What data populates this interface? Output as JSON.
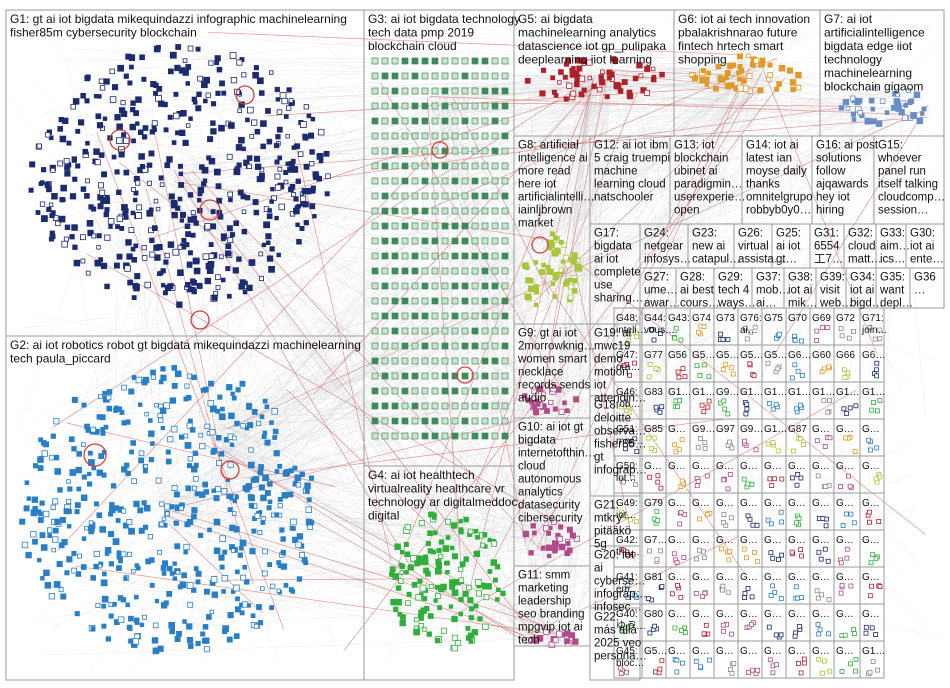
{
  "colors": {
    "background": "#ffffff",
    "border": "#9a9a9a",
    "edge": "#bdbdbd",
    "edge_highlight": "#d04040",
    "g1": "#1c2a6e",
    "g2": "#2a7fc4",
    "g3": "#3f8a5a",
    "g4": "#2fae3a",
    "g5": "#b0202a",
    "g6": "#e09a2a",
    "g7": "#6a8cc7",
    "g8": "#a8c63a",
    "g9": "#b04a8a",
    "misc": "#8a8a8a"
  },
  "groups": [
    {
      "id": "g1",
      "lines": [
        "G1: gt ai iot bigdata mikequindazzi infographic machinelearning",
        "fisher85m cybersecurity blockchain"
      ]
    },
    {
      "id": "g2",
      "lines": [
        "G2: ai iot robotics robot gt bigdata mikequindazzi machinelearning",
        "tech paula_piccard"
      ]
    },
    {
      "id": "g3",
      "lines": [
        "G3: ai iot bigdata technology",
        "tech data pmp 2019",
        "blockchain cloud"
      ]
    },
    {
      "id": "g4",
      "lines": [
        "G4: ai iot healthtech",
        "virtualreality healthcare vr",
        "technology ar digitalmeddoc",
        "digital"
      ]
    },
    {
      "id": "g5",
      "lines": [
        "G5: ai bigdata",
        "machinelearning analytics",
        "datascience iot gp_pulipaka",
        "deeplearning iiot learning"
      ]
    },
    {
      "id": "g6",
      "lines": [
        "G6: iot ai tech innovation",
        "pbalakrishnarao future",
        "fintech hrtech smart",
        "shopping"
      ]
    },
    {
      "id": "g7",
      "lines": [
        "G7: ai iot",
        "artificialintelligence",
        "bigdata edge iiot",
        "technology",
        "machinelearning",
        "blockchain gigaom"
      ]
    },
    {
      "id": "g8",
      "lines": [
        "G8: artificial",
        "intelligence ai",
        "more read",
        "here iot",
        "artificialintelli…",
        "iainljbrown",
        "market"
      ]
    },
    {
      "id": "g12",
      "lines": [
        "G12: ai iot ibm",
        "5 craig truempi",
        "machine",
        "learning cloud",
        "natschooler"
      ]
    },
    {
      "id": "g13",
      "lines": [
        "G13: iot",
        "blockchain",
        "ubinet ai",
        "paradigmin…",
        "userexperie…",
        "open"
      ]
    },
    {
      "id": "g14",
      "lines": [
        "G14: iot ai",
        "latest ian",
        "moyse daily",
        "thanks",
        "omnitelgrupo",
        "robbyb0y0…"
      ]
    },
    {
      "id": "g16",
      "lines": [
        "G16: ai post",
        "solutions",
        "follow",
        "ajqawards",
        "hey iot",
        "hiring"
      ]
    },
    {
      "id": "g15",
      "lines": [
        "G15:",
        "whoever",
        "panel run",
        "itself talking",
        "cloudcomp…",
        "session…"
      ]
    },
    {
      "id": "g17",
      "lines": [
        "G17:",
        "bigdata",
        "ai iot",
        "complete",
        "use",
        "sharing…"
      ]
    },
    {
      "id": "g24",
      "lines": [
        "G24:",
        "netgear",
        "infosys…"
      ]
    },
    {
      "id": "g23",
      "lines": [
        "G23:",
        "new ai",
        "catapul…"
      ]
    },
    {
      "id": "g26",
      "lines": [
        "G26:",
        "virtual",
        "assista…"
      ]
    },
    {
      "id": "g25",
      "lines": [
        "G25:",
        "ai iot",
        "gt…"
      ]
    },
    {
      "id": "g31",
      "lines": [
        "G31:",
        "6554",
        "工7…"
      ]
    },
    {
      "id": "g32",
      "lines": [
        "G32:",
        "cloud",
        "matt…"
      ]
    },
    {
      "id": "g33",
      "lines": [
        "G33:",
        "aim…",
        "ics…"
      ]
    },
    {
      "id": "g30",
      "lines": [
        "G30:",
        "iot ai",
        "ente…"
      ]
    },
    {
      "id": "g27",
      "lines": [
        "G27:",
        "ume…",
        "awar…"
      ]
    },
    {
      "id": "g28",
      "lines": [
        "G28:",
        "ai best",
        "cours…"
      ]
    },
    {
      "id": "g29",
      "lines": [
        "G29:",
        "tech 4",
        "ways…"
      ]
    },
    {
      "id": "g37",
      "lines": [
        "G37:",
        "mob…",
        "ai…"
      ]
    },
    {
      "id": "g38",
      "lines": [
        "G38:",
        "iot ai",
        "mik…"
      ]
    },
    {
      "id": "g39",
      "lines": [
        "G39:",
        "visit",
        "web…"
      ]
    },
    {
      "id": "g34",
      "lines": [
        "G34:",
        "iot ai",
        "bigd…"
      ]
    },
    {
      "id": "g35",
      "lines": [
        "G35:",
        "want",
        "depl…"
      ]
    },
    {
      "id": "g36",
      "lines": [
        "G36",
        "…"
      ]
    },
    {
      "id": "g9",
      "lines": [
        "G9: gt ai iot",
        "2morrowknig…",
        "women smart",
        "necklace",
        "records sends",
        "audio"
      ]
    },
    {
      "id": "g19",
      "lines": [
        "G19: ai",
        "mwc19",
        "demo",
        "motion",
        "iot",
        "attendin…"
      ]
    },
    {
      "id": "g18",
      "lines": [
        "G18:",
        "deloitte",
        "observa…",
        "fisher85…",
        "gt",
        "infograp…"
      ]
    },
    {
      "id": "g10",
      "lines": [
        "G10: ai iot gt",
        "bigdata",
        "internetofthin…",
        "cloud",
        "autonomous",
        "analytics",
        "datasecurity",
        "cibersecurity"
      ]
    },
    {
      "id": "g21",
      "lines": [
        "G21:",
        "mtkry",
        "pitääkö",
        "5g"
      ]
    },
    {
      "id": "g20",
      "lines": [
        "G20: iot",
        "ai",
        "cyberse…",
        "infograp…",
        "infosec…"
      ]
    },
    {
      "id": "g11",
      "lines": [
        "G11: smm",
        "marketing",
        "leadership",
        "seo branding",
        "mpgvip iot ai",
        "tech"
      ]
    },
    {
      "id": "g22",
      "lines": [
        "G22:",
        "más allá",
        "2025 veo",
        "persona…"
      ]
    }
  ],
  "small_groups": [
    "G48: inteli…",
    "G44: vous…",
    "G43: …",
    "G74",
    "G73",
    "G76: ai…",
    "G75",
    "G70",
    "G69",
    "G72",
    "G71: join…",
    "G47: ora…",
    "G77",
    "G56",
    "G5…",
    "G5…",
    "G5…",
    "G5…",
    "G6…",
    "G60",
    "G66",
    "G6…",
    "G46: rob…",
    "G83",
    "G1…",
    "G1…",
    "G9…",
    "G1…",
    "G1…",
    "G1…",
    "G1…",
    "G1…",
    "G1…",
    "G51: mor…",
    "G85",
    "G…",
    "G9…",
    "G97",
    "G9…",
    "G1…",
    "G87",
    "G…",
    "G…",
    "G…",
    "G50: iot…",
    "G…",
    "G…",
    "G…",
    "G…",
    "G…",
    "G…",
    "G…",
    "G…",
    "G…",
    "G…",
    "G49: iot…",
    "G79",
    "G…",
    "G…",
    "G…",
    "G…",
    "G…",
    "G…",
    "G…",
    "G…",
    "G…",
    "G42: tho…",
    "G7…",
    "G…",
    "G…",
    "G…",
    "G…",
    "G…",
    "G…",
    "G…",
    "G…",
    "G…",
    "G41: em…",
    "G81",
    "G…",
    "G…",
    "G…",
    "G…",
    "G…",
    "G…",
    "G…",
    "G…",
    "G…",
    "G40: ゆう…",
    "G80",
    "G…",
    "G…",
    "G…",
    "G…",
    "G…",
    "G…",
    "G…",
    "G…",
    "G…",
    "G45: bloc…",
    "G5…",
    "G…",
    "G…",
    "G…",
    "G…",
    "G…",
    "G…",
    "G…",
    "G…",
    "G1…"
  ]
}
